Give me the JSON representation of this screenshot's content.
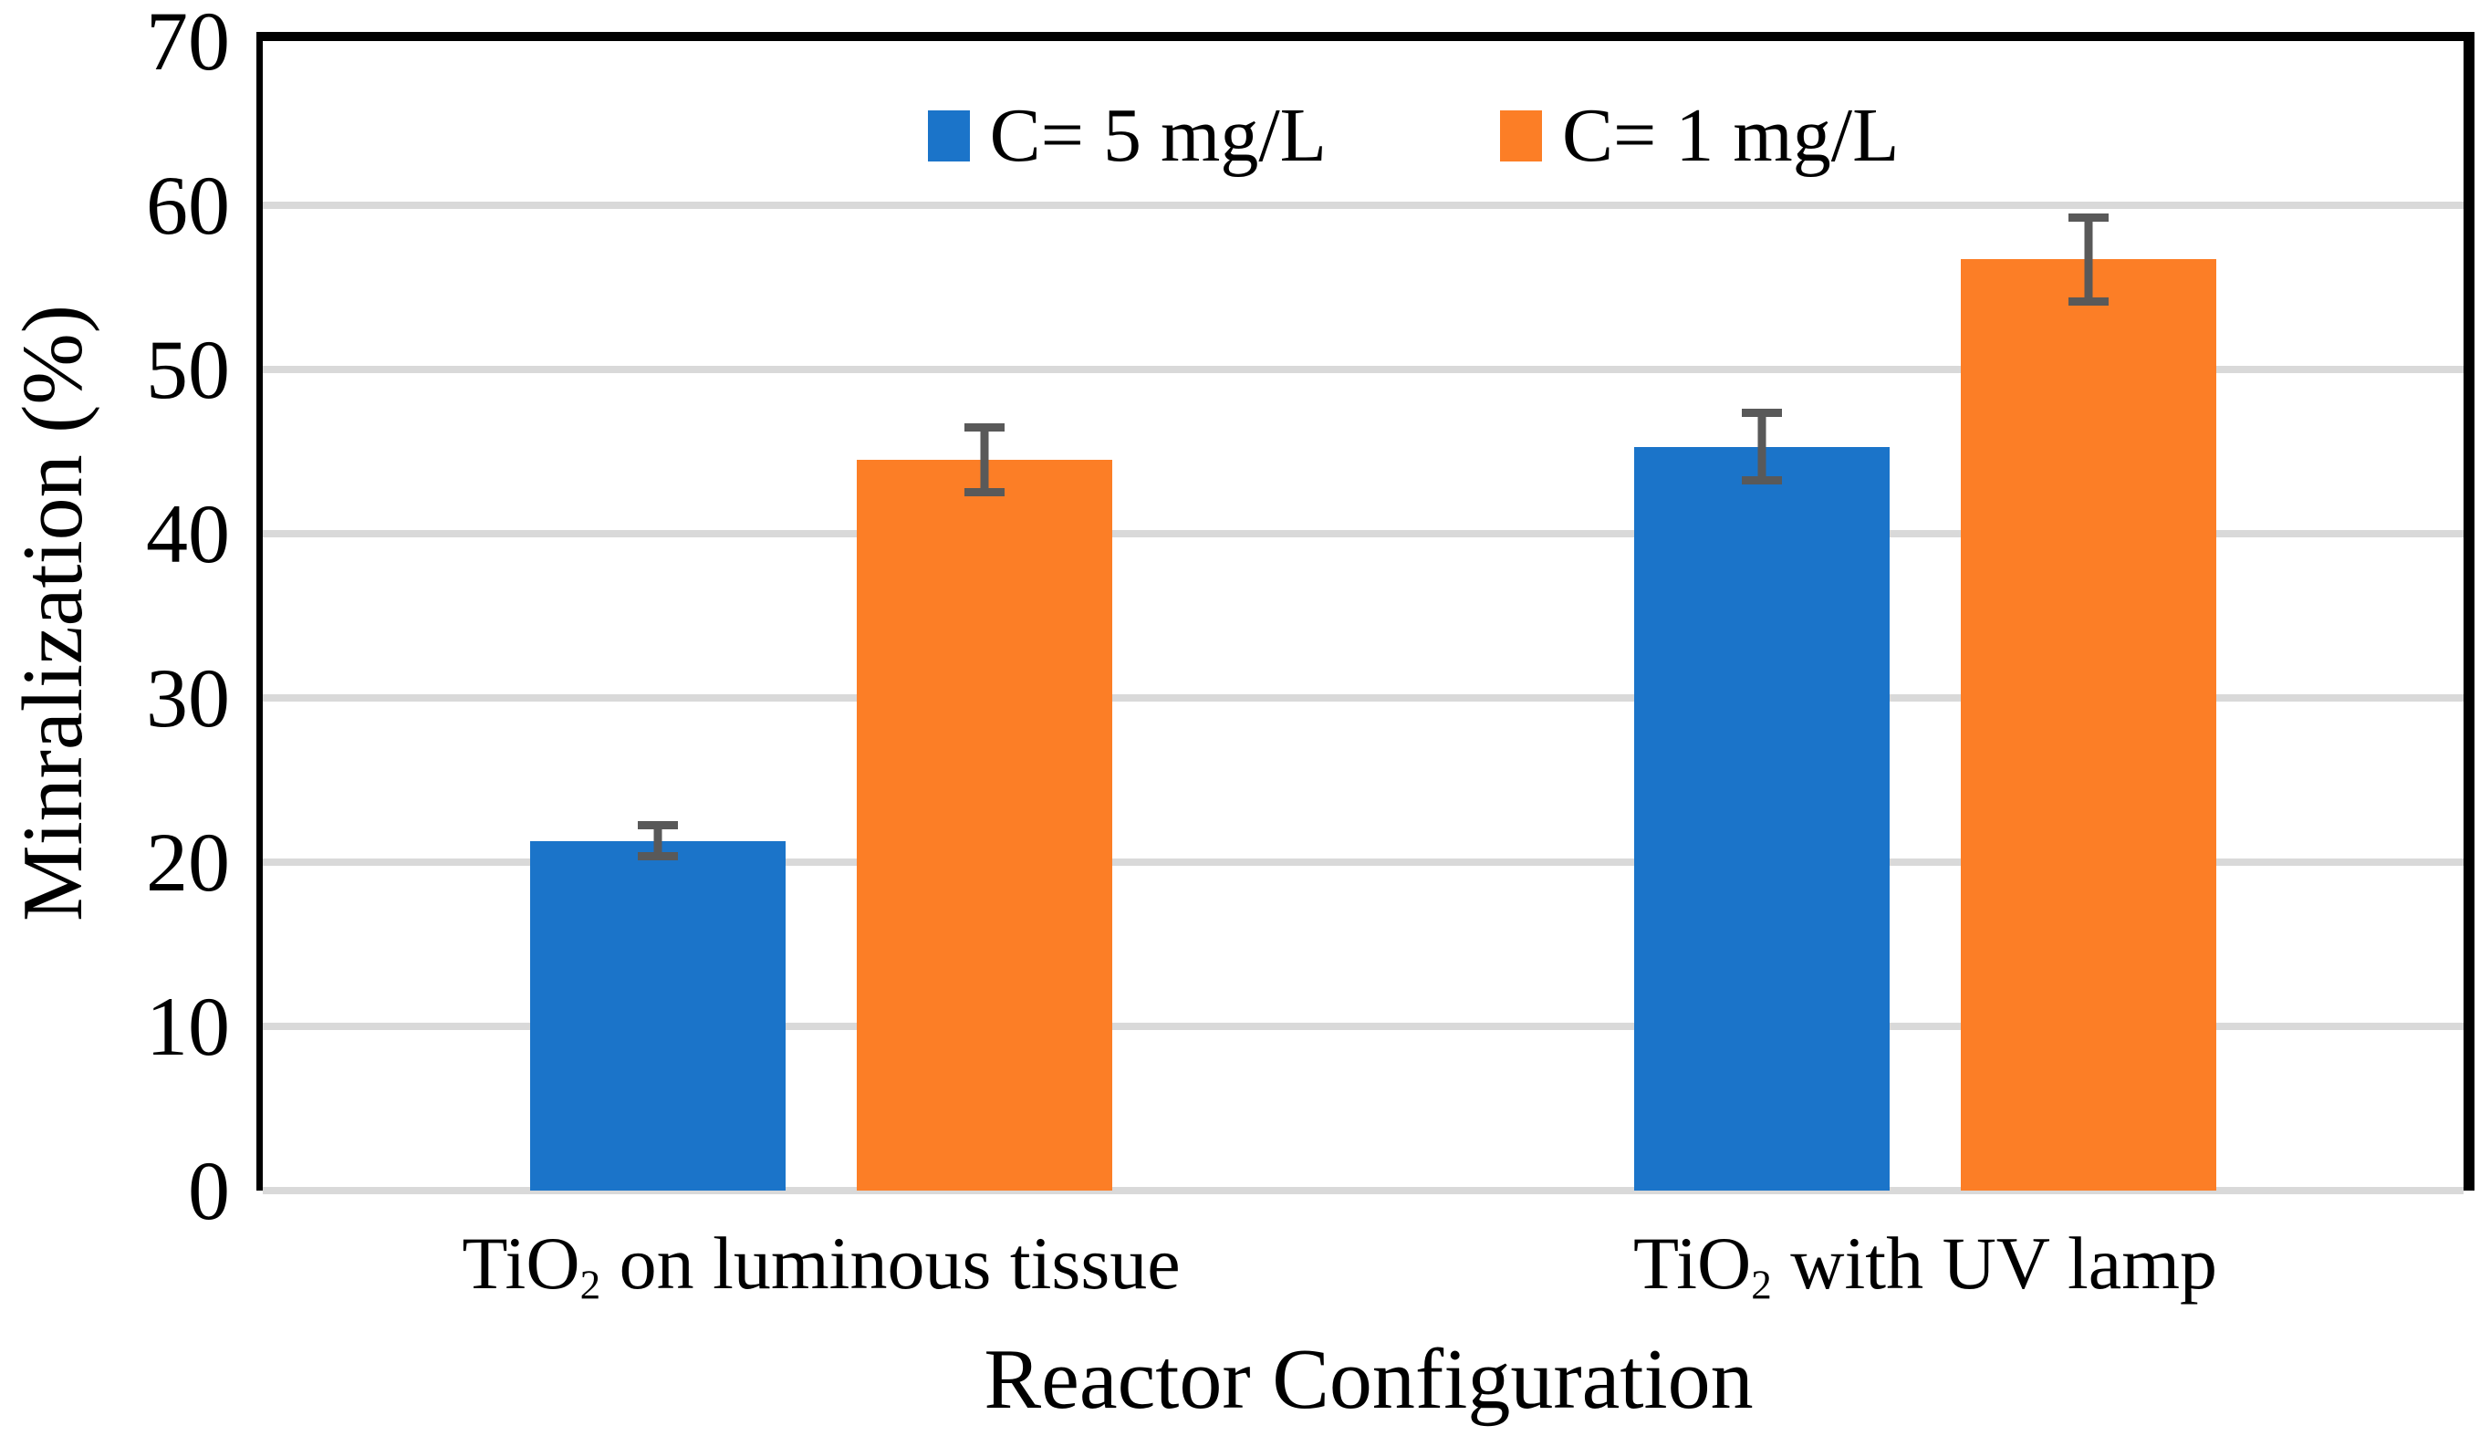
{
  "figure": {
    "background": "#FFFFFF"
  },
  "chart_data": {
    "type": "bar",
    "title": "",
    "xlabel": "Reactor Configuration",
    "ylabel": "Minralization (%)",
    "ylim": [
      0,
      70
    ],
    "ytick_step": 10,
    "yticks": [
      0,
      10,
      20,
      30,
      40,
      50,
      60,
      70
    ],
    "grid": true,
    "legend_position": "top-center",
    "categories": [
      "TiO2 on luminous tissue",
      "TiO2 with UV lamp"
    ],
    "categories_rich": [
      {
        "prefix": "TiO",
        "sub": "2",
        "suffix": " on luminous tissue"
      },
      {
        "prefix": "TiO",
        "sub": "2",
        "suffix": " with UV lamp"
      }
    ],
    "series": [
      {
        "name": "C= 5 mg/L",
        "color": "#1B74C9",
        "values": [
          21.3,
          45.3
        ],
        "errors": [
          1.2,
          2.3
        ]
      },
      {
        "name": "C= 1 mg/L",
        "color": "#FC7E26",
        "values": [
          44.5,
          56.7
        ],
        "errors": [
          2.2,
          2.8
        ]
      }
    ],
    "error_bar_color": "#595959",
    "gridline_color": "#D9D9D9",
    "axis_color": "#000000"
  }
}
